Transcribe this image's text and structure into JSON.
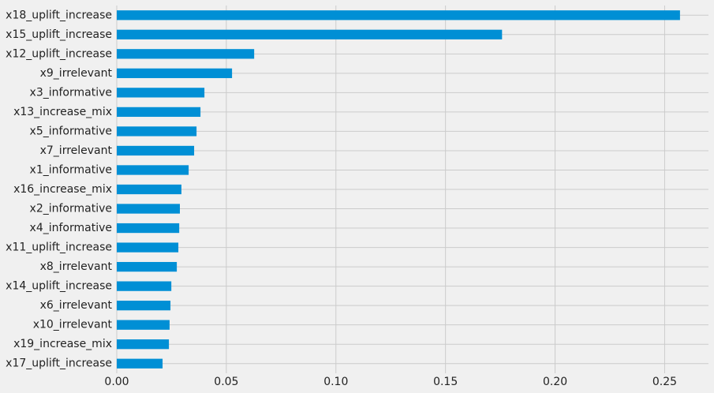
{
  "chart_data": {
    "type": "barh",
    "categories": [
      "x18_uplift_increase",
      "x15_uplift_increase",
      "x12_uplift_increase",
      "x9_irrelevant",
      "x3_informative",
      "x13_increase_mix",
      "x5_informative",
      "x7_irrelevant",
      "x1_informative",
      "x16_increase_mix",
      "x2_informative",
      "x4_informative",
      "x11_uplift_increase",
      "x8_irrelevant",
      "x14_uplift_increase",
      "x6_irrelevant",
      "x10_irrelevant",
      "x19_increase_mix",
      "x17_uplift_increase"
    ],
    "values": [
      0.257,
      0.1758,
      0.0627,
      0.0526,
      0.04,
      0.0382,
      0.0364,
      0.0353,
      0.0328,
      0.0295,
      0.0288,
      0.0285,
      0.0281,
      0.0274,
      0.0249,
      0.0245,
      0.0241,
      0.0238,
      0.0209
    ],
    "color": "#008fd5",
    "xlim": [
      0,
      0.27
    ],
    "xticks": [
      {
        "value": 0,
        "label": "0.00"
      },
      {
        "value": 0.05,
        "label": "0.05"
      },
      {
        "value": 0.1,
        "label": "0.10"
      },
      {
        "value": 0.15,
        "label": "0.15"
      },
      {
        "value": 0.2,
        "label": "0.20"
      },
      {
        "value": 0.25,
        "label": "0.25"
      }
    ],
    "grid": true
  }
}
